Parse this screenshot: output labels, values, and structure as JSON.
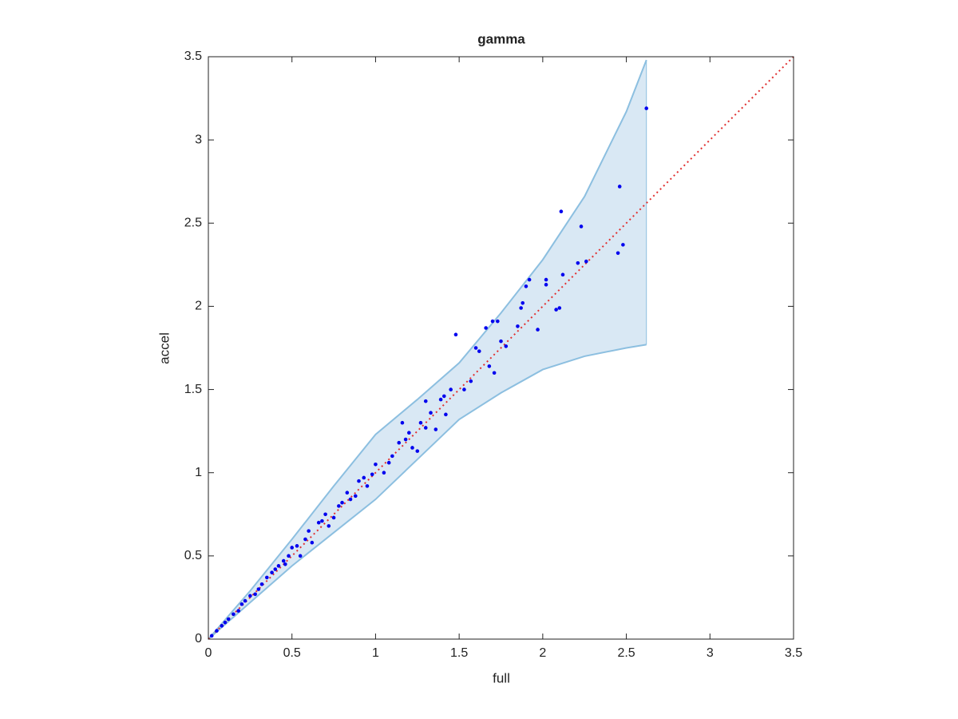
{
  "chart_data": {
    "type": "scatter",
    "title": "gamma",
    "x_label": "full",
    "y_label": "accel",
    "xlim": [
      0,
      3.5
    ],
    "ylim": [
      0,
      3.5
    ],
    "xticks": [
      0,
      0.5,
      1,
      1.5,
      2,
      2.5,
      3,
      3.5
    ],
    "yticks": [
      0,
      0.5,
      1,
      1.5,
      2,
      2.5,
      3,
      3.5
    ],
    "band": {
      "color": "#d9e8f4",
      "edge_color": "#8cbfe0",
      "x": [
        0,
        0.25,
        0.5,
        0.75,
        1,
        1.25,
        1.5,
        1.75,
        2,
        2.25,
        2.5,
        2.62
      ],
      "upper": [
        0,
        0.29,
        0.6,
        0.92,
        1.23,
        1.44,
        1.66,
        1.96,
        2.28,
        2.66,
        3.17,
        3.48
      ],
      "lower": [
        0,
        0.22,
        0.44,
        0.64,
        0.84,
        1.08,
        1.32,
        1.48,
        1.62,
        1.7,
        1.75,
        1.77
      ]
    },
    "reference_line": {
      "color": "#e03030",
      "x": [
        0,
        3.5
      ],
      "y": [
        0,
        3.5
      ]
    },
    "series": [
      {
        "color": "#0000ee",
        "x": [
          2.62,
          2.46,
          2.11,
          2.23,
          2.45,
          2.48,
          2.26,
          2.21,
          2.12,
          2.02,
          2.02,
          1.92,
          1.9,
          1.88,
          1.87,
          2.1,
          2.08,
          1.48,
          1.7,
          1.73,
          1.66,
          1.97,
          1.75,
          1.6,
          1.62,
          1.71,
          1.53,
          1.45,
          1.41,
          1.3,
          1.16,
          1.2,
          1.3,
          1.36,
          1.25,
          1.1,
          1.0,
          0.95,
          1.05,
          0.9,
          0.85,
          0.8,
          0.7,
          0.72,
          0.6,
          0.62,
          0.5,
          0.55,
          0.45,
          0.4,
          0.35,
          0.3,
          0.25,
          0.2,
          0.15,
          0.1,
          0.05,
          0.02,
          1.08,
          1.14,
          0.98,
          0.88,
          0.78,
          0.66,
          0.58,
          0.48,
          0.42,
          0.38,
          0.32,
          0.28,
          0.22,
          0.18,
          0.12,
          0.08,
          1.42,
          1.33,
          1.18,
          1.22,
          0.93,
          0.83,
          0.75,
          0.68,
          0.53,
          0.46,
          1.85,
          1.78,
          1.68,
          1.57,
          1.39,
          1.27
        ],
        "y": [
          3.19,
          2.72,
          2.57,
          2.48,
          2.32,
          2.37,
          2.27,
          2.26,
          2.19,
          2.16,
          2.13,
          2.16,
          2.12,
          2.02,
          1.99,
          1.99,
          1.98,
          1.83,
          1.91,
          1.91,
          1.87,
          1.86,
          1.79,
          1.75,
          1.73,
          1.6,
          1.5,
          1.5,
          1.46,
          1.43,
          1.3,
          1.24,
          1.27,
          1.26,
          1.13,
          1.1,
          1.05,
          0.92,
          1.0,
          0.95,
          0.84,
          0.82,
          0.75,
          0.68,
          0.65,
          0.58,
          0.55,
          0.5,
          0.47,
          0.42,
          0.37,
          0.3,
          0.26,
          0.21,
          0.15,
          0.1,
          0.05,
          0.02,
          1.06,
          1.18,
          0.99,
          0.86,
          0.8,
          0.7,
          0.6,
          0.5,
          0.44,
          0.4,
          0.33,
          0.27,
          0.23,
          0.17,
          0.12,
          0.08,
          1.35,
          1.36,
          1.2,
          1.15,
          0.97,
          0.88,
          0.73,
          0.71,
          0.56,
          0.45,
          1.88,
          1.76,
          1.64,
          1.55,
          1.44,
          1.3
        ]
      }
    ]
  }
}
